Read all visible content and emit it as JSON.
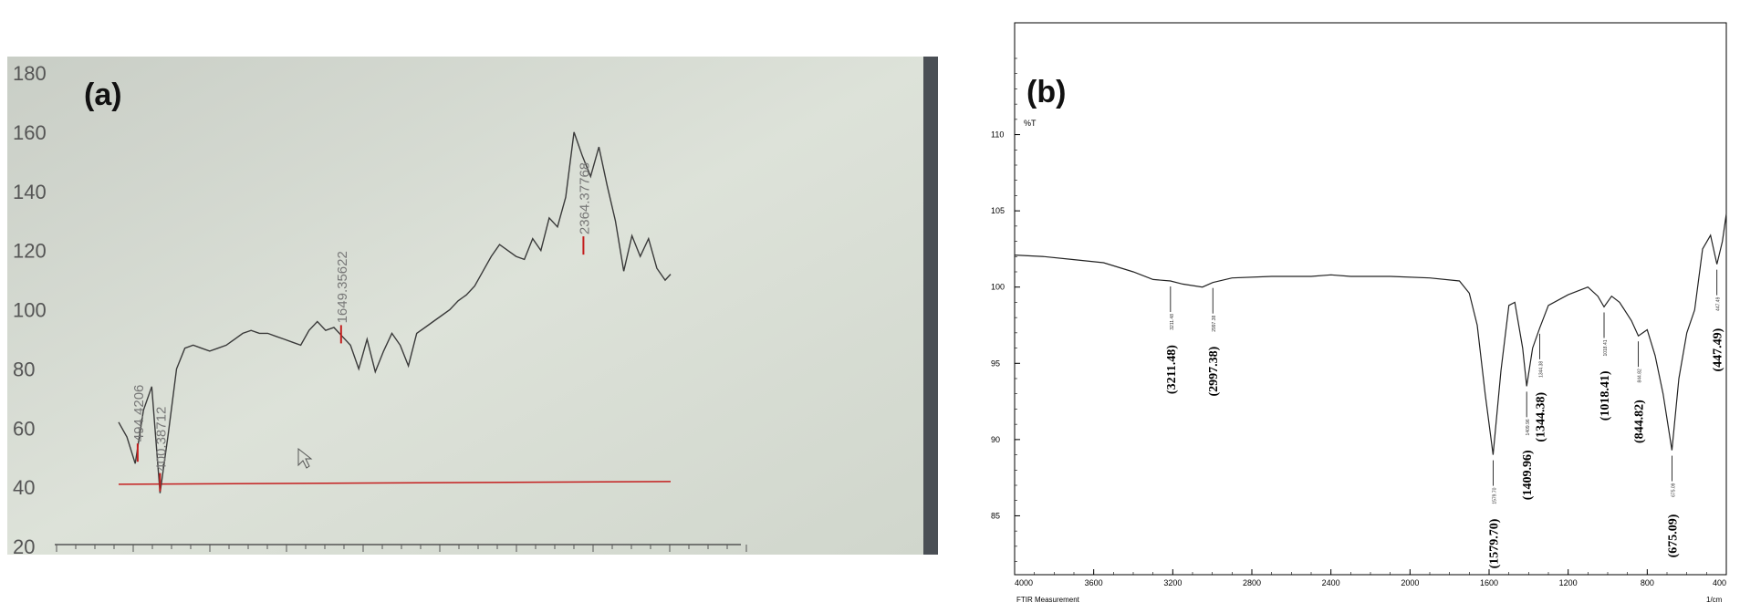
{
  "chart_data": [
    {
      "type": "line",
      "panel_label": "(a)",
      "ylim": [
        20,
        180
      ],
      "yticks": [
        "20",
        "40",
        "60",
        "80",
        "100",
        "120",
        "140",
        "160",
        "180"
      ],
      "x": [
        0.0,
        0.015,
        0.03,
        0.045,
        0.06,
        0.075,
        0.09,
        0.105,
        0.12,
        0.135,
        0.15,
        0.165,
        0.18,
        0.195,
        0.21,
        0.225,
        0.24,
        0.255,
        0.27,
        0.285,
        0.3,
        0.315,
        0.33,
        0.345,
        0.36,
        0.375,
        0.39,
        0.405,
        0.42,
        0.435,
        0.45,
        0.465,
        0.48,
        0.495,
        0.51,
        0.525,
        0.54,
        0.555,
        0.57,
        0.585,
        0.6,
        0.615,
        0.63,
        0.645,
        0.66,
        0.675,
        0.69,
        0.705,
        0.72,
        0.735,
        0.75,
        0.765,
        0.78,
        0.795,
        0.81,
        0.825,
        0.84,
        0.855,
        0.87,
        0.885,
        0.9,
        0.915,
        0.93,
        0.945,
        0.96,
        0.975,
        0.99,
        1.0
      ],
      "y": [
        62,
        57,
        48,
        66,
        74,
        38,
        58,
        80,
        87,
        88,
        87,
        86,
        87,
        88,
        90,
        92,
        93,
        92,
        92,
        91,
        90,
        89,
        88,
        93,
        96,
        93,
        94,
        91,
        88,
        80,
        90,
        79,
        86,
        92,
        88,
        81,
        92,
        94,
        96,
        98,
        100,
        103,
        105,
        108,
        113,
        118,
        122,
        120,
        118,
        117,
        124,
        120,
        131,
        128,
        138,
        160,
        152,
        145,
        155,
        142,
        130,
        113,
        125,
        118,
        124,
        114,
        110,
        112
      ],
      "baseline": 41,
      "peaks": [
        {
          "label": "494.4206",
          "x": 0.0345,
          "y": 48
        },
        {
          "label": "400.38712",
          "x": 0.075,
          "y": 38
        },
        {
          "label": "1649.35622",
          "x": 0.403,
          "y": 88
        },
        {
          "label": "2364.37768",
          "x": 0.842,
          "y": 118
        }
      ]
    },
    {
      "type": "line",
      "panel_label": "(b)",
      "ylabel": "%T",
      "xlabel": "1/cm",
      "footer": "FTIR Measurement",
      "xlim": [
        4000,
        400
      ],
      "ylim": [
        80,
        115
      ],
      "xticks": [
        4000,
        3600,
        3200,
        2800,
        2400,
        2000,
        1600,
        1200,
        800,
        400
      ],
      "xtick_labels": [
        "4000",
        "3600",
        "3200",
        "2800",
        "2400",
        "2000",
        "1600",
        "1200",
        "800",
        "400"
      ],
      "yticks": [
        85,
        90,
        95,
        100,
        105,
        110
      ],
      "ytick_labels": [
        "85",
        "90",
        "95",
        "100",
        "105",
        "110"
      ],
      "x": [
        4000,
        3850,
        3700,
        3550,
        3400,
        3300,
        3211.48,
        3150,
        3050,
        2997.38,
        2900,
        2700,
        2500,
        2400,
        2300,
        2100,
        1900,
        1750,
        1700,
        1660,
        1620,
        1579.7,
        1540,
        1500,
        1470,
        1430,
        1409.96,
        1380,
        1344.38,
        1300,
        1200,
        1100,
        1050,
        1018.41,
        980,
        940,
        880,
        844.82,
        800,
        760,
        720,
        675.09,
        640,
        600,
        560,
        520,
        480,
        447.49,
        420,
        400
      ],
      "y": [
        102.1,
        102.0,
        101.8,
        101.6,
        101.0,
        100.5,
        100.4,
        100.2,
        100.0,
        100.3,
        100.6,
        100.7,
        100.7,
        100.8,
        100.7,
        100.7,
        100.6,
        100.4,
        99.6,
        97.5,
        93.0,
        89.0,
        94.5,
        98.8,
        99.0,
        96.0,
        93.5,
        96.0,
        97.3,
        98.8,
        99.5,
        100.0,
        99.4,
        98.7,
        99.4,
        99.0,
        97.8,
        96.8,
        97.2,
        95.5,
        93.0,
        89.3,
        94.0,
        97.0,
        98.5,
        102.5,
        103.4,
        101.5,
        103.0,
        104.8
      ],
      "peaks": [
        {
          "label": "(3211.48)",
          "small": "3211.48",
          "x": 3211.48,
          "y": 100.4
        },
        {
          "label": "(2997.38)",
          "small": "2997.38",
          "x": 2997.38,
          "y": 100.3
        },
        {
          "label": "(1579.70)",
          "small": "1579.70",
          "x": 1579.7,
          "y": 89.0
        },
        {
          "label": "(1409.96)",
          "small": "1409.96",
          "x": 1409.96,
          "y": 93.5
        },
        {
          "label": "(1344.38)",
          "small": "1344.38",
          "x": 1344.38,
          "y": 97.3
        },
        {
          "label": "(1018.41)",
          "small": "1018.41",
          "x": 1018.41,
          "y": 98.7
        },
        {
          "label": "(844.82)",
          "small": "844.82",
          "x": 844.82,
          "y": 96.8
        },
        {
          "label": "(675.09)",
          "small": "675.09",
          "x": 675.09,
          "y": 89.3
        },
        {
          "label": "(447.49)",
          "small": "447.49",
          "x": 447.49,
          "y": 101.5
        }
      ]
    }
  ],
  "colors": {
    "photo_bg": "#d6dcd3",
    "trace": "#3a3a3a",
    "marker": "#c41e1e",
    "axis": "#000000"
  }
}
